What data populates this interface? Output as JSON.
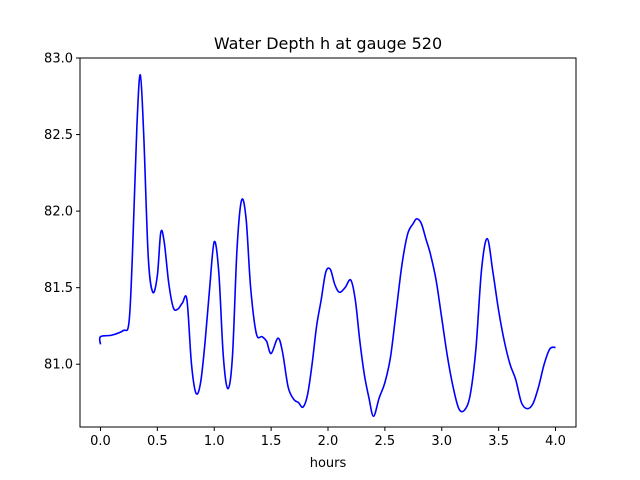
{
  "chart_data": {
    "type": "line",
    "title": "Water Depth h at gauge 520",
    "xlabel": "hours",
    "ylabel": "",
    "xlim": [
      -0.18,
      4.18
    ],
    "ylim": [
      80.59,
      83.0
    ],
    "xticks": [
      0.0,
      0.5,
      1.0,
      1.5,
      2.0,
      2.5,
      3.0,
      3.5,
      4.0
    ],
    "xtick_labels": [
      "0.0",
      "0.5",
      "1.0",
      "1.5",
      "2.0",
      "2.5",
      "3.0",
      "3.5",
      "4.0"
    ],
    "yticks": [
      81.0,
      81.5,
      82.0,
      82.5,
      83.0
    ],
    "ytick_labels": [
      "81.0",
      "81.5",
      "82.0",
      "82.5",
      "83.0"
    ],
    "grid": false,
    "legend": "none",
    "series": [
      {
        "color": "#0000ff",
        "x": [
          0.0,
          0.0,
          0.1,
          0.2,
          0.25,
          0.28,
          0.32,
          0.35,
          0.38,
          0.42,
          0.46,
          0.5,
          0.53,
          0.56,
          0.6,
          0.64,
          0.68,
          0.72,
          0.76,
          0.8,
          0.84,
          0.88,
          0.92,
          0.96,
          1.0,
          1.04,
          1.08,
          1.12,
          1.16,
          1.2,
          1.24,
          1.28,
          1.32,
          1.37,
          1.42,
          1.46,
          1.5,
          1.56,
          1.6,
          1.65,
          1.7,
          1.74,
          1.78,
          1.82,
          1.86,
          1.9,
          1.94,
          1.98,
          2.02,
          2.06,
          2.1,
          2.15,
          2.2,
          2.24,
          2.28,
          2.32,
          2.36,
          2.4,
          2.45,
          2.5,
          2.55,
          2.6,
          2.65,
          2.7,
          2.75,
          2.78,
          2.82,
          2.86,
          2.9,
          2.95,
          3.0,
          3.05,
          3.1,
          3.15,
          3.2,
          3.25,
          3.3,
          3.35,
          3.4,
          3.45,
          3.5,
          3.55,
          3.6,
          3.65,
          3.7,
          3.75,
          3.8,
          3.85,
          3.9,
          3.95,
          4.0
        ],
        "y": [
          81.13,
          81.18,
          81.19,
          81.22,
          81.27,
          81.7,
          82.55,
          82.89,
          82.5,
          81.7,
          81.47,
          81.58,
          81.86,
          81.8,
          81.53,
          81.37,
          81.36,
          81.4,
          81.42,
          81.0,
          80.81,
          80.88,
          81.15,
          81.5,
          81.8,
          81.6,
          81.05,
          80.84,
          81.05,
          81.75,
          82.07,
          81.95,
          81.5,
          81.2,
          81.18,
          81.15,
          81.07,
          81.17,
          81.08,
          80.85,
          80.77,
          80.75,
          80.72,
          80.8,
          81.0,
          81.25,
          81.42,
          81.6,
          81.62,
          81.52,
          81.47,
          81.5,
          81.55,
          81.42,
          81.15,
          80.93,
          80.78,
          80.66,
          80.78,
          80.88,
          81.05,
          81.35,
          81.65,
          81.85,
          81.92,
          81.95,
          81.92,
          81.82,
          81.72,
          81.55,
          81.3,
          81.05,
          80.85,
          80.71,
          80.7,
          80.8,
          81.1,
          81.62,
          81.82,
          81.6,
          81.35,
          81.15,
          81.0,
          80.9,
          80.75,
          80.71,
          80.74,
          80.85,
          81.0,
          81.1,
          81.11
        ]
      }
    ]
  }
}
